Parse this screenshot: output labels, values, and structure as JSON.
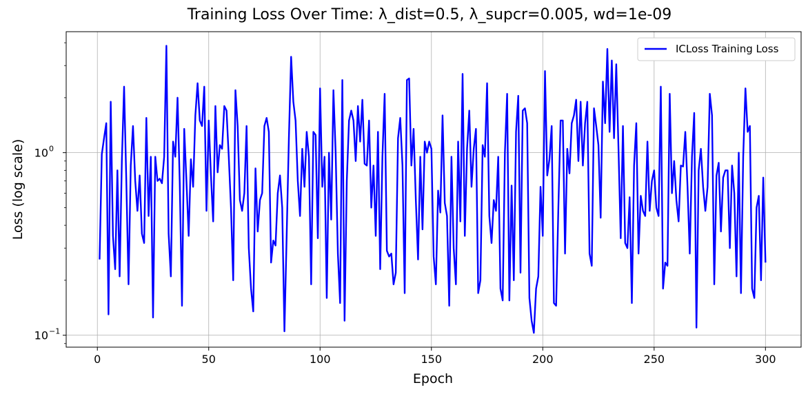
{
  "chart_data": {
    "type": "line",
    "title": "Training Loss Over Time: λ_dist=0.5, λ_supcr=0.005, wd=1e-09",
    "xlabel": "Epoch",
    "ylabel": "Loss (log scale)",
    "xlim": [
      -14,
      316
    ],
    "ylim": [
      0.086,
      4.6
    ],
    "yscale": "log",
    "grid": true,
    "legend": "top-right",
    "x_ticks": [
      0,
      50,
      100,
      150,
      200,
      250,
      300
    ],
    "y_ticks": [
      {
        "value": 0.1,
        "base": "10",
        "exp": "−1"
      },
      {
        "value": 1,
        "base": "10",
        "exp": "0"
      }
    ],
    "x_start": 1,
    "series": [
      {
        "name": "ICLoss Training Loss",
        "color": "#0000ff",
        "values": [
          0.26,
          0.98,
          1.2,
          1.45,
          0.13,
          1.9,
          0.35,
          0.23,
          0.8,
          0.21,
          0.9,
          2.3,
          0.7,
          0.19,
          0.85,
          1.4,
          0.7,
          0.48,
          0.75,
          0.36,
          0.32,
          1.55,
          0.45,
          0.95,
          0.125,
          0.95,
          0.7,
          0.72,
          0.68,
          0.95,
          3.85,
          0.36,
          0.21,
          1.15,
          0.95,
          2.0,
          0.68,
          0.145,
          1.35,
          0.7,
          0.35,
          0.92,
          0.65,
          1.6,
          2.4,
          1.5,
          1.4,
          2.3,
          0.48,
          1.5,
          0.75,
          0.42,
          1.8,
          0.78,
          1.1,
          1.05,
          1.8,
          1.7,
          0.95,
          0.5,
          0.2,
          2.2,
          1.4,
          0.55,
          0.48,
          0.6,
          1.4,
          0.3,
          0.18,
          0.135,
          0.82,
          0.37,
          0.55,
          0.6,
          1.4,
          1.55,
          1.3,
          0.25,
          0.33,
          0.31,
          0.6,
          0.75,
          0.5,
          0.105,
          0.35,
          1.2,
          3.35,
          1.9,
          1.5,
          0.7,
          0.45,
          1.05,
          0.65,
          1.3,
          0.95,
          0.19,
          1.3,
          1.25,
          0.34,
          2.25,
          0.65,
          0.95,
          0.16,
          1.0,
          0.43,
          2.2,
          1.0,
          0.28,
          0.15,
          2.5,
          0.12,
          0.7,
          1.5,
          1.7,
          1.5,
          0.9,
          1.8,
          1.15,
          1.95,
          0.87,
          0.85,
          1.5,
          0.5,
          0.85,
          0.35,
          1.3,
          0.23,
          0.95,
          2.1,
          0.29,
          0.27,
          0.28,
          0.19,
          0.22,
          1.2,
          1.55,
          0.85,
          0.17,
          2.5,
          2.55,
          0.85,
          1.35,
          0.55,
          0.26,
          0.95,
          0.38,
          1.15,
          1.0,
          1.15,
          1.05,
          0.27,
          0.19,
          0.62,
          0.47,
          1.6,
          0.53,
          0.45,
          0.145,
          0.95,
          0.3,
          0.19,
          1.15,
          0.42,
          2.7,
          0.35,
          1.05,
          1.7,
          0.65,
          1.05,
          1.35,
          0.17,
          0.2,
          1.1,
          0.95,
          2.4,
          0.45,
          0.32,
          0.55,
          0.48,
          0.95,
          0.18,
          0.155,
          1.0,
          2.1,
          0.155,
          0.66,
          0.2,
          1.3,
          2.05,
          0.22,
          1.7,
          1.75,
          1.45,
          0.16,
          0.12,
          0.103,
          0.18,
          0.21,
          0.65,
          0.35,
          2.8,
          0.75,
          0.92,
          1.4,
          0.15,
          0.145,
          0.5,
          1.5,
          1.5,
          0.28,
          1.05,
          0.77,
          1.45,
          1.6,
          1.95,
          0.9,
          1.9,
          0.85,
          1.45,
          1.9,
          0.28,
          0.24,
          1.75,
          1.4,
          1.1,
          0.44,
          2.45,
          1.45,
          3.7,
          1.3,
          3.2,
          1.2,
          3.05,
          1.05,
          0.34,
          1.4,
          0.32,
          0.3,
          0.57,
          0.15,
          0.85,
          1.45,
          0.28,
          0.58,
          0.48,
          0.45,
          1.15,
          0.48,
          0.7,
          0.8,
          0.5,
          0.45,
          2.3,
          0.18,
          0.25,
          0.24,
          2.1,
          0.6,
          0.9,
          0.55,
          0.42,
          0.85,
          0.84,
          1.3,
          0.65,
          0.28,
          0.95,
          1.65,
          0.11,
          0.8,
          1.05,
          0.65,
          0.48,
          0.65,
          2.1,
          1.6,
          0.19,
          0.75,
          0.88,
          0.37,
          0.73,
          0.8,
          0.8,
          0.3,
          0.85,
          0.6,
          0.21,
          1.0,
          0.17,
          0.95,
          2.25,
          1.3,
          1.4,
          0.18,
          0.16,
          0.5,
          0.58,
          0.2,
          0.73,
          0.25
        ]
      }
    ]
  }
}
